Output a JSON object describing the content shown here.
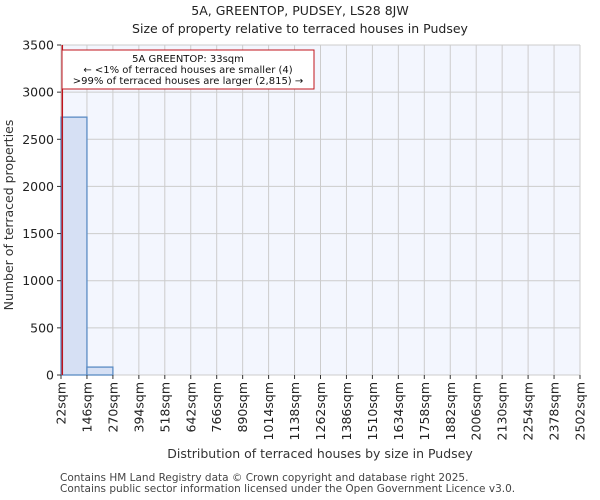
{
  "header": {
    "title": "5A, GREENTOP, PUDSEY, LS28 8JW",
    "subtitle": "Size of property relative to terraced houses in Pudsey"
  },
  "annotation": {
    "line1": "5A GREENTOP: 33sqm",
    "line2": "← <1% of terraced houses are smaller (4)",
    "line3": ">99% of terraced houses are larger (2,815) →",
    "marker_value_sqm": 33,
    "color": "#c0141c"
  },
  "footer": {
    "line1": "Contains HM Land Registry data © Crown copyright and database right 2025.",
    "line2": "Contains public sector information licensed under the Open Government Licence v3.0."
  },
  "colors": {
    "bar_fill": "#d6e0f4",
    "bar_edge": "#5b8cc4",
    "plot_bg": "#f3f6fe",
    "grid": "#cccccc",
    "marker": "#c0141c"
  },
  "chart_data": {
    "type": "bar",
    "title": "5A, GREENTOP, PUDSEY, LS28 8JW",
    "subtitle": "Size of property relative to terraced houses in Pudsey",
    "xlabel": "Distribution of terraced houses by size in Pudsey",
    "ylabel": "Number of terraced properties",
    "categories": [
      "22sqm",
      "146sqm",
      "270sqm",
      "394sqm",
      "518sqm",
      "642sqm",
      "766sqm",
      "890sqm",
      "1014sqm",
      "1138sqm",
      "1262sqm",
      "1386sqm",
      "1510sqm",
      "1634sqm",
      "1758sqm",
      "1882sqm",
      "2006sqm",
      "2130sqm",
      "2254sqm",
      "2378sqm",
      "2502sqm"
    ],
    "bin_edges": [
      22,
      146,
      270,
      394,
      518,
      642,
      766,
      890,
      1014,
      1138,
      1262,
      1386,
      1510,
      1634,
      1758,
      1882,
      2006,
      2130,
      2254,
      2378,
      2502
    ],
    "values": [
      2735,
      84,
      0,
      0,
      0,
      0,
      0,
      0,
      0,
      0,
      0,
      0,
      0,
      0,
      0,
      0,
      0,
      0,
      0,
      0
    ],
    "yticks": [
      0,
      500,
      1000,
      1500,
      2000,
      2500,
      3000,
      3500
    ],
    "ylim": [
      0,
      3500
    ],
    "xlim": [
      22,
      2502
    ],
    "grid": true,
    "marker_x": 33
  }
}
